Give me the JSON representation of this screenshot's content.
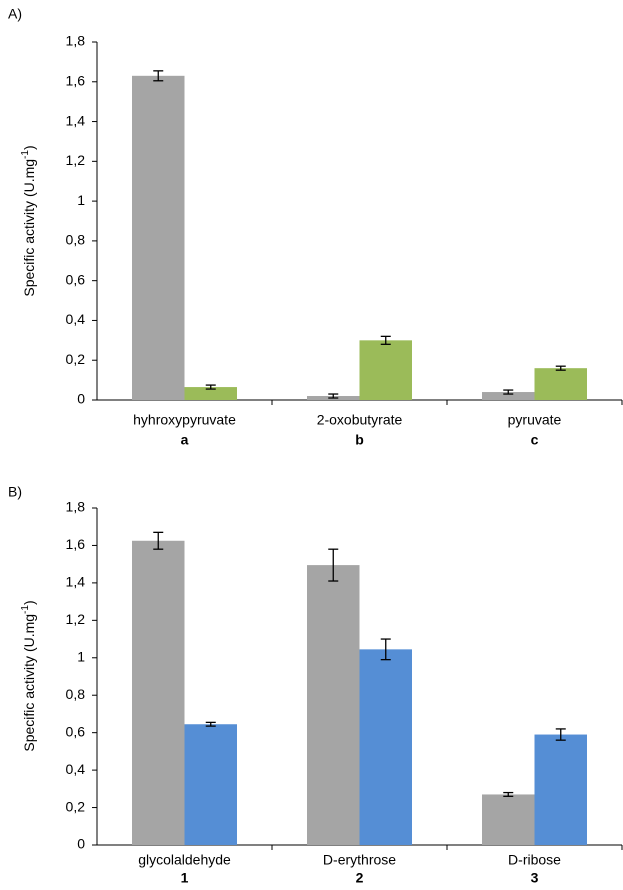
{
  "chart_data": [
    {
      "type": "bar",
      "panel": "A)",
      "y_label": "Specific activity (U.mg",
      "y_label_sup": "-1",
      "y_label_end": ")",
      "categories": [
        "hyhroxypyruvate",
        "2-oxobutyrate",
        "pyruvate"
      ],
      "category_ids": [
        "a",
        "b",
        "c"
      ],
      "series": [
        {
          "color": "#a5a5a5",
          "values": [
            1.63,
            0.02,
            0.04
          ],
          "errors": [
            0.025,
            0.01,
            0.01
          ]
        },
        {
          "color": "#9bbb59",
          "values": [
            0.065,
            0.3,
            0.16
          ],
          "errors": [
            0.01,
            0.02,
            0.01
          ]
        }
      ],
      "ylim": [
        0,
        1.8
      ],
      "yticks": [
        0,
        {
          "value": 0.2,
          "label": "0,2"
        },
        {
          "value": 0.4,
          "label": "0,4"
        },
        {
          "value": 0.6,
          "label": "0,6"
        },
        {
          "value": 0.8,
          "label": "0,8"
        },
        1,
        {
          "value": 1.2,
          "label": "1,2"
        },
        {
          "value": 1.4,
          "label": "1,4"
        },
        {
          "value": 1.6,
          "label": "1,6"
        },
        {
          "value": 1.8,
          "label": "1,8"
        }
      ]
    },
    {
      "type": "bar",
      "panel": "B)",
      "y_label": "Specific activity (U.mg",
      "y_label_sup": "-1",
      "y_label_end": ")",
      "categories": [
        "glycolaldehyde",
        "D-erythrose",
        "D-ribose"
      ],
      "category_ids": [
        "1",
        "2",
        "3"
      ],
      "series": [
        {
          "color": "#a5a5a5",
          "values": [
            1.625,
            1.495,
            0.27
          ],
          "errors": [
            0.045,
            0.085,
            0.01
          ]
        },
        {
          "color": "#558ed5",
          "values": [
            0.645,
            1.045,
            0.59
          ],
          "errors": [
            0.01,
            0.055,
            0.03
          ]
        }
      ],
      "ylim": [
        0,
        1.8
      ],
      "yticks": [
        0,
        {
          "value": 0.2,
          "label": "0,2"
        },
        {
          "value": 0.4,
          "label": "0,4"
        },
        {
          "value": 0.6,
          "label": "0,6"
        },
        {
          "value": 0.8,
          "label": "0,8"
        },
        1,
        {
          "value": 1.2,
          "label": "1,2"
        },
        {
          "value": 1.4,
          "label": "1,4"
        },
        {
          "value": 1.6,
          "label": "1,6"
        },
        {
          "value": 1.8,
          "label": "1,8"
        }
      ]
    }
  ]
}
